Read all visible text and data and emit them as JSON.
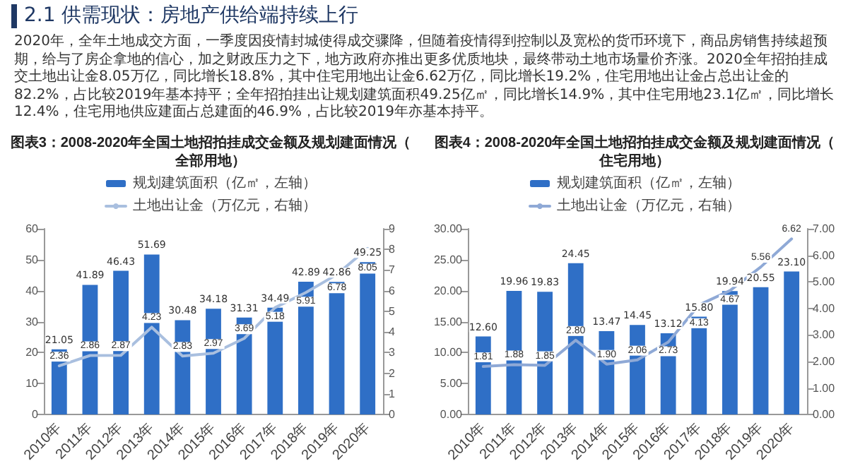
{
  "chart_data": [
    {
      "type": "bar",
      "title": "图表3：2008-2020年全国土地招拍挂成交金额及规划建面情况（全部用地）",
      "annotations": [
        "2.1 供需现状：房地产供给端持续上行",
        "2020年，全年土地成交方面，一季度因疫情封城使得成交骤降，但随着疫情得到控制以及宽松的货币环境下，商品房销售持续超预期，给与了房企拿地的信心，加之财政压力之下，地方政府亦推出更多优质地块，最终带动土地市场量价齐涨。2020全年招拍挂成交土地出让金8.05万亿，同比增长18.8%，其中住宅用地出让金6.62万亿，同比增长19.2%，住宅用地出让金占总出让金的 82.2%，占比较2019年基本持平；全年招拍挂出让规划建筑面积49.25亿㎡，同比增长14.9%，其中住宅用地23.1亿㎡，同比增长12.4%，住宅用地供应建面占总建面的46.9%，占比较2019年亦基本持平。"
      ],
      "categories": [
        "2010年",
        "2011年",
        "2012年",
        "2013年",
        "2014年",
        "2015年",
        "2016年",
        "2017年",
        "2018年",
        "2019年",
        "2020年"
      ],
      "series": [
        {
          "name": "规划建筑面积（亿㎡，左轴）",
          "color": "#2f6fc6",
          "values": [
            21.05,
            41.89,
            46.43,
            51.69,
            30.48,
            34.18,
            31.31,
            34.49,
            42.89,
            42.86,
            49.25
          ]
        },
        {
          "name": "土地出让金（万亿元，右轴）",
          "type": "line",
          "axis": "y2",
          "color": "#a9bfdf",
          "values": [
            2.36,
            2.86,
            2.87,
            4.23,
            2.83,
            2.97,
            3.69,
            5.18,
            5.91,
            6.78,
            8.05
          ]
        }
      ],
      "ylim": [
        0,
        60
      ],
      "yticks": [
        0,
        10,
        20,
        30,
        40,
        50,
        60
      ],
      "y2lim": [
        0,
        9
      ],
      "y2ticks": [
        0,
        1,
        2,
        3,
        4,
        5,
        6,
        7,
        8,
        9
      ],
      "data_labels": true,
      "legend": "top",
      "grid": false,
      "marker": "none",
      "line_style": "solid"
    },
    {
      "type": "bar",
      "title": "图表4：2008-2020年全国土地招拍挂成交金额及规划建面情况（住宅用地）",
      "categories": [
        "2010年",
        "2011年",
        "2012年",
        "2013年",
        "2014年",
        "2015年",
        "2016年",
        "2017年",
        "2018年",
        "2019年",
        "2020年"
      ],
      "series": [
        {
          "name": "规划建筑面积（亿㎡，左轴）",
          "color": "#2f6fc6",
          "values": [
            12.6,
            19.96,
            19.83,
            24.45,
            13.47,
            14.45,
            13.12,
            15.8,
            19.94,
            20.55,
            23.1
          ],
          "value_labels": [
            "12.60",
            "19.96",
            "19.83",
            "24.45",
            "13.47",
            "14.45",
            "13.12",
            "15.80",
            "19.94",
            "20.55",
            "23.10"
          ]
        },
        {
          "name": "土地出让金（万亿元，右轴）",
          "type": "line",
          "axis": "y2",
          "color": "#8fa9d6",
          "values": [
            1.81,
            1.88,
            1.85,
            2.8,
            1.9,
            2.06,
            2.73,
            4.13,
            4.67,
            5.56,
            6.62
          ],
          "value_labels": [
            "1.81",
            "1.88",
            "1.85",
            "2.80",
            "1.90",
            "2.06",
            "2.73",
            "4.13",
            "4.67",
            "5.56",
            "6.62"
          ]
        }
      ],
      "ylim": [
        0,
        30
      ],
      "yticks": [
        {
          "value": 0,
          "label": "0.00"
        },
        {
          "value": 5,
          "label": "5.00"
        },
        {
          "value": 10,
          "label": "10.00"
        },
        {
          "value": 15,
          "label": "15.00"
        },
        {
          "value": 20,
          "label": "20.00"
        },
        {
          "value": 25,
          "label": "25.00"
        },
        {
          "value": 30,
          "label": "30.00"
        }
      ],
      "y2lim": [
        0,
        7
      ],
      "y2ticks": [
        {
          "value": 0,
          "label": "0.00"
        },
        {
          "value": 1,
          "label": "1.00"
        },
        {
          "value": 2,
          "label": "2.00"
        },
        {
          "value": 3,
          "label": "3.00"
        },
        {
          "value": 4,
          "label": "4.00"
        },
        {
          "value": 5,
          "label": "5.00"
        },
        {
          "value": 6,
          "label": "6.00"
        },
        {
          "value": 7,
          "label": "7.00"
        }
      ],
      "legend": "top",
      "grid": false,
      "marker": "none",
      "line_style": "solid"
    }
  ]
}
